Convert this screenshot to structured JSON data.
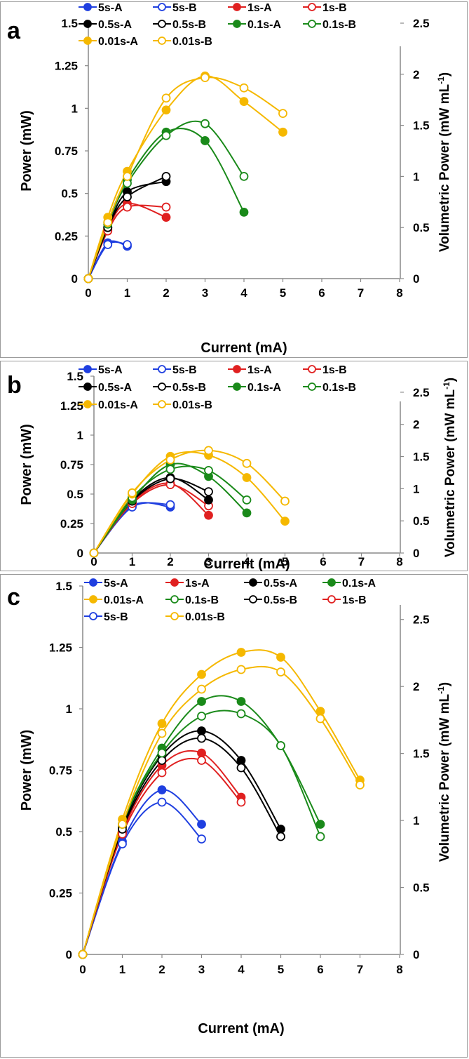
{
  "chart_data": [
    {
      "type": "scatter",
      "panel_label": "a",
      "xlabel": "Current (mA)",
      "ylabel": "Power (mW)",
      "y2label": "Volumetric Power (mW mL",
      "y2label_sup": "-1",
      "y2label_end": ")",
      "xlim": [
        0,
        8
      ],
      "ylim": [
        0,
        1.5
      ],
      "y2lim": [
        0,
        2.5
      ],
      "x_ticks": [
        "0",
        "1",
        "2",
        "3",
        "4",
        "5",
        "6",
        "7",
        "8"
      ],
      "y_ticks": [
        "0",
        "0.25",
        "0.5",
        "0.75",
        "1",
        "1.25",
        "1.5"
      ],
      "y2_ticks": [
        "0",
        "0.5",
        "1",
        "1.5",
        "2",
        "2.5"
      ],
      "grid": false,
      "legend": {
        "placement": "top",
        "rows": [
          [
            "5s-A",
            "5s-B",
            "1s-A",
            "1s-B"
          ],
          [
            "0.5s-A",
            "0.5s-B",
            "0.1s-A",
            "0.1s-B"
          ],
          [
            "0.01s-A",
            "0.01s-B"
          ]
        ]
      },
      "series": [
        {
          "name": "5s-A",
          "color": "#1f3fe0",
          "filled": true,
          "x": [
            0,
            0.5,
            1
          ],
          "y": [
            0,
            0.21,
            0.19
          ]
        },
        {
          "name": "5s-B",
          "color": "#1f3fe0",
          "filled": false,
          "x": [
            0,
            0.5,
            1
          ],
          "y": [
            0,
            0.2,
            0.2
          ]
        },
        {
          "name": "1s-A",
          "color": "#e02020",
          "filled": true,
          "x": [
            0,
            0.5,
            1,
            2
          ],
          "y": [
            0,
            0.29,
            0.44,
            0.36
          ]
        },
        {
          "name": "1s-B",
          "color": "#e02020",
          "filled": false,
          "x": [
            0,
            0.5,
            1,
            2
          ],
          "y": [
            0,
            0.28,
            0.42,
            0.42
          ]
        },
        {
          "name": "0.5s-A",
          "color": "#000000",
          "filled": true,
          "x": [
            0,
            0.5,
            1,
            2
          ],
          "y": [
            0,
            0.3,
            0.51,
            0.57
          ]
        },
        {
          "name": "0.5s-B",
          "color": "#000000",
          "filled": false,
          "x": [
            0,
            0.5,
            1,
            2
          ],
          "y": [
            0,
            0.3,
            0.48,
            0.6
          ]
        },
        {
          "name": "0.1s-A",
          "color": "#1a8a1a",
          "filled": true,
          "x": [
            0,
            0.5,
            1,
            2,
            3,
            4
          ],
          "y": [
            0,
            0.33,
            0.58,
            0.86,
            0.81,
            0.39
          ]
        },
        {
          "name": "0.1s-B",
          "color": "#1a8a1a",
          "filled": false,
          "x": [
            0,
            0.5,
            1,
            2,
            3,
            4
          ],
          "y": [
            0,
            0.32,
            0.56,
            0.84,
            0.91,
            0.6
          ]
        },
        {
          "name": "0.01s-A",
          "color": "#f5b800",
          "filled": true,
          "x": [
            0,
            0.5,
            1,
            2,
            3,
            4,
            5
          ],
          "y": [
            0,
            0.36,
            0.63,
            0.99,
            1.19,
            1.04,
            0.86
          ]
        },
        {
          "name": "0.01s-B",
          "color": "#f5b800",
          "filled": false,
          "x": [
            0,
            0.5,
            1,
            2,
            3,
            4,
            5
          ],
          "y": [
            0,
            0.33,
            0.6,
            1.06,
            1.18,
            1.12,
            0.97
          ]
        }
      ]
    },
    {
      "type": "scatter",
      "panel_label": "b",
      "xlabel": "Current (mA)",
      "ylabel": "Power (mW)",
      "y2label": "Volumetric Power (mW mL",
      "y2label_sup": "-1",
      "y2label_end": ")",
      "xlim": [
        0,
        8
      ],
      "ylim": [
        0,
        1.5
      ],
      "y2lim": [
        0,
        2.75
      ],
      "x_ticks": [
        "0",
        "1",
        "2",
        "3",
        "4",
        "5",
        "6",
        "7",
        "8"
      ],
      "y_ticks": [
        "0",
        "0.25",
        "0.5",
        "0.75",
        "1",
        "1.25",
        "1.5"
      ],
      "y2_ticks": [
        "0",
        "0.5",
        "1",
        "1.5",
        "2",
        "2.5"
      ],
      "grid": false,
      "legend": {
        "placement": "top",
        "rows": [
          [
            "5s-A",
            "5s-B",
            "1s-A",
            "1s-B"
          ],
          [
            "0.5s-A",
            "0.5s-B",
            "0.1s-A",
            "0.1s-B"
          ],
          [
            "0.01s-A",
            "0.01s-B"
          ]
        ]
      },
      "series": [
        {
          "name": "5s-A",
          "color": "#1f3fe0",
          "filled": true,
          "x": [
            0,
            1,
            2
          ],
          "y": [
            0,
            0.4,
            0.39
          ]
        },
        {
          "name": "5s-B",
          "color": "#1f3fe0",
          "filled": false,
          "x": [
            0,
            1,
            2
          ],
          "y": [
            0,
            0.39,
            0.41
          ]
        },
        {
          "name": "1s-A",
          "color": "#e02020",
          "filled": true,
          "x": [
            0,
            1,
            2,
            3
          ],
          "y": [
            0,
            0.43,
            0.59,
            0.32
          ]
        },
        {
          "name": "1s-B",
          "color": "#e02020",
          "filled": false,
          "x": [
            0,
            1,
            2,
            3
          ],
          "y": [
            0,
            0.42,
            0.58,
            0.4
          ]
        },
        {
          "name": "0.5s-A",
          "color": "#000000",
          "filled": true,
          "x": [
            0,
            1,
            2,
            3
          ],
          "y": [
            0,
            0.45,
            0.64,
            0.45
          ]
        },
        {
          "name": "0.5s-B",
          "color": "#000000",
          "filled": false,
          "x": [
            0,
            1,
            2,
            3
          ],
          "y": [
            0,
            0.44,
            0.63,
            0.52
          ]
        },
        {
          "name": "0.1s-A",
          "color": "#1a8a1a",
          "filled": true,
          "x": [
            0,
            1,
            2,
            3,
            4
          ],
          "y": [
            0,
            0.45,
            0.75,
            0.65,
            0.34
          ]
        },
        {
          "name": "0.1s-B",
          "color": "#1a8a1a",
          "filled": false,
          "x": [
            0,
            1,
            2,
            3,
            4
          ],
          "y": [
            0,
            0.47,
            0.71,
            0.7,
            0.45
          ]
        },
        {
          "name": "0.01s-A",
          "color": "#f5b800",
          "filled": true,
          "x": [
            0,
            1,
            2,
            3,
            4,
            5
          ],
          "y": [
            0,
            0.5,
            0.82,
            0.83,
            0.64,
            0.27
          ]
        },
        {
          "name": "0.01s-B",
          "color": "#f5b800",
          "filled": false,
          "x": [
            0,
            1,
            2,
            3,
            4,
            5
          ],
          "y": [
            0,
            0.51,
            0.79,
            0.87,
            0.76,
            0.44
          ]
        }
      ]
    },
    {
      "type": "scatter",
      "panel_label": "c",
      "xlabel": "Current (mA)",
      "ylabel": "Power (mW)",
      "y2label": "Volumetric Power (mW mL",
      "y2label_sup": "-1",
      "y2label_end": ")",
      "xlim": [
        0,
        8
      ],
      "ylim": [
        0,
        1.5
      ],
      "y2lim": [
        0,
        2.75
      ],
      "x_ticks": [
        "0",
        "1",
        "2",
        "3",
        "4",
        "5",
        "6",
        "7",
        "8"
      ],
      "y_ticks": [
        "0",
        "0.25",
        "0.5",
        "0.75",
        "1",
        "1.25",
        "1.5"
      ],
      "y2_ticks": [
        "0",
        "0.5",
        "1",
        "1.5",
        "2",
        "2.5"
      ],
      "grid": false,
      "legend": {
        "placement": "top",
        "rows": [
          [
            "5s-A",
            "1s-A",
            "0.5s-A",
            "0.1s-A"
          ],
          [
            "0.01s-A",
            "0.1s-B",
            "0.5s-B",
            "1s-B"
          ],
          [
            "5s-B",
            "0.01s-B"
          ]
        ]
      },
      "series": [
        {
          "name": "5s-A",
          "color": "#1f3fe0",
          "filled": true,
          "x": [
            0,
            1,
            2,
            3
          ],
          "y": [
            0,
            0.46,
            0.67,
            0.53
          ]
        },
        {
          "name": "5s-B",
          "color": "#1f3fe0",
          "filled": false,
          "x": [
            0,
            1,
            2,
            3
          ],
          "y": [
            0,
            0.45,
            0.62,
            0.47
          ]
        },
        {
          "name": "1s-A",
          "color": "#e02020",
          "filled": true,
          "x": [
            0,
            1,
            2,
            3,
            4
          ],
          "y": [
            0,
            0.5,
            0.77,
            0.82,
            0.64
          ]
        },
        {
          "name": "1s-B",
          "color": "#e02020",
          "filled": false,
          "x": [
            0,
            1,
            2,
            3,
            4
          ],
          "y": [
            0,
            0.49,
            0.74,
            0.79,
            0.62
          ]
        },
        {
          "name": "0.5s-A",
          "color": "#000000",
          "filled": true,
          "x": [
            0,
            1,
            2,
            3,
            4,
            5
          ],
          "y": [
            0,
            0.52,
            0.81,
            0.91,
            0.79,
            0.51
          ]
        },
        {
          "name": "0.5s-B",
          "color": "#000000",
          "filled": false,
          "x": [
            0,
            1,
            2,
            3,
            4,
            5
          ],
          "y": [
            0,
            0.51,
            0.79,
            0.88,
            0.76,
            0.48
          ]
        },
        {
          "name": "0.1s-A",
          "color": "#1a8a1a",
          "filled": true,
          "x": [
            0,
            1,
            2,
            3,
            4,
            5,
            6
          ],
          "y": [
            0,
            0.53,
            0.84,
            1.03,
            1.03,
            0.85,
            0.53
          ]
        },
        {
          "name": "0.1s-B",
          "color": "#1a8a1a",
          "filled": false,
          "x": [
            0,
            1,
            2,
            3,
            4,
            5,
            6
          ],
          "y": [
            0,
            0.53,
            0.82,
            0.97,
            0.98,
            0.85,
            0.48
          ]
        },
        {
          "name": "0.01s-A",
          "color": "#f5b800",
          "filled": true,
          "x": [
            0,
            1,
            2,
            3,
            4,
            5,
            6,
            7
          ],
          "y": [
            0,
            0.55,
            0.94,
            1.14,
            1.23,
            1.21,
            0.99,
            0.71
          ]
        },
        {
          "name": "0.01s-B",
          "color": "#f5b800",
          "filled": false,
          "x": [
            0,
            1,
            2,
            3,
            4,
            5,
            6,
            7
          ],
          "y": [
            0,
            0.53,
            0.9,
            1.08,
            1.16,
            1.15,
            0.96,
            0.69
          ]
        }
      ]
    }
  ]
}
